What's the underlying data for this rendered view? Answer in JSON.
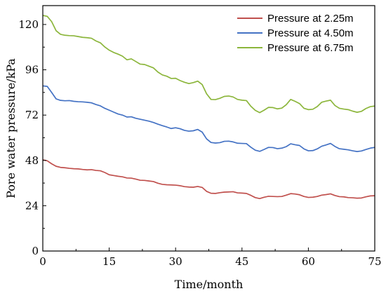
{
  "chart_data": {
    "type": "line",
    "title": "",
    "xlabel": "Time/month",
    "ylabel": "Pore water pressure/kPa",
    "xlim": [
      0,
      75
    ],
    "ylim": [
      0,
      130
    ],
    "xticks": [
      0,
      15,
      30,
      45,
      60,
      75
    ],
    "yticks": [
      0,
      24,
      48,
      72,
      96,
      120
    ],
    "xtick_labels": [
      "0",
      "15",
      "30",
      "45",
      "60",
      "75"
    ],
    "ytick_labels": [
      "0",
      "24",
      "48",
      "72",
      "96",
      "120"
    ],
    "grid": false,
    "legend_position": "top-right",
    "x": [
      0,
      1,
      2,
      3,
      4,
      5,
      6,
      7,
      8,
      9,
      10,
      11,
      12,
      13,
      14,
      15,
      16,
      17,
      18,
      19,
      20,
      21,
      22,
      23,
      24,
      25,
      26,
      27,
      28,
      29,
      30,
      31,
      32,
      33,
      34,
      35,
      36,
      37,
      38,
      39,
      40,
      41,
      42,
      43,
      44,
      45,
      46,
      47,
      48,
      49,
      50,
      51,
      52,
      53,
      54,
      55,
      56,
      57,
      58,
      59,
      60,
      61,
      62,
      63,
      64,
      65,
      66,
      67,
      68,
      69,
      70,
      71,
      72,
      73,
      74,
      75
    ],
    "series": [
      {
        "name": "Pressure at 2.25m",
        "color": "#c0504d",
        "values": [
          48.3,
          47.8,
          46.2,
          44.9,
          44.3,
          44.1,
          43.8,
          43.6,
          43.5,
          43.2,
          43.0,
          43.1,
          42.7,
          42.5,
          41.6,
          40.4,
          40.0,
          39.6,
          39.3,
          38.7,
          38.6,
          38.1,
          37.5,
          37.4,
          37.1,
          36.8,
          35.9,
          35.3,
          35.1,
          35.0,
          34.9,
          34.6,
          34.1,
          33.9,
          33.8,
          34.2,
          33.7,
          31.6,
          30.6,
          30.5,
          30.9,
          31.2,
          31.3,
          31.4,
          30.8,
          30.7,
          30.5,
          29.5,
          28.3,
          27.8,
          28.5,
          29.0,
          28.9,
          28.8,
          28.9,
          29.6,
          30.4,
          30.2,
          29.8,
          28.9,
          28.4,
          28.5,
          28.9,
          29.6,
          29.9,
          30.3,
          29.4,
          28.8,
          28.7,
          28.3,
          28.2,
          28.0,
          28.1,
          28.7,
          29.2,
          29.3
        ]
      },
      {
        "name": "Pressure at 4.50m",
        "color": "#4472c4",
        "values": [
          87.5,
          87.2,
          84.0,
          80.6,
          79.8,
          79.6,
          79.7,
          79.3,
          79.1,
          79.0,
          78.8,
          78.5,
          77.6,
          76.9,
          75.6,
          74.6,
          73.6,
          72.6,
          72.0,
          71.0,
          71.1,
          70.3,
          69.8,
          69.3,
          68.8,
          68.1,
          67.2,
          66.4,
          65.7,
          64.9,
          65.3,
          64.8,
          63.9,
          63.5,
          63.7,
          64.4,
          63.0,
          59.4,
          57.5,
          57.2,
          57.4,
          58.1,
          58.2,
          57.8,
          57.1,
          57.0,
          56.9,
          55.0,
          53.4,
          52.8,
          53.8,
          54.9,
          54.8,
          54.2,
          54.5,
          55.3,
          56.8,
          56.3,
          55.9,
          54.1,
          53.1,
          53.2,
          54.1,
          55.5,
          56.2,
          57.0,
          55.4,
          54.2,
          53.9,
          53.6,
          53.1,
          52.7,
          53.0,
          53.8,
          54.5,
          54.9
        ]
      },
      {
        "name": "Pressure at 6.75m",
        "color": "#8cb63c",
        "values": [
          124.8,
          124.3,
          121.5,
          116.7,
          114.8,
          114.3,
          114.1,
          114.0,
          113.6,
          113.2,
          113.0,
          112.7,
          111.3,
          110.3,
          108.1,
          106.4,
          105.2,
          104.3,
          103.2,
          101.3,
          101.8,
          100.4,
          99.0,
          98.8,
          97.9,
          97.0,
          94.8,
          93.3,
          92.6,
          91.4,
          91.5,
          90.3,
          89.4,
          88.7,
          89.2,
          90.0,
          88.2,
          83.3,
          80.3,
          80.2,
          80.9,
          81.9,
          82.1,
          81.6,
          80.3,
          79.9,
          79.7,
          76.7,
          74.5,
          73.3,
          74.6,
          76.1,
          76.0,
          75.3,
          75.7,
          77.5,
          80.3,
          79.3,
          78.1,
          75.6,
          74.9,
          75.1,
          76.5,
          78.8,
          79.4,
          79.9,
          77.1,
          75.6,
          75.2,
          74.9,
          74.1,
          73.5,
          74.0,
          75.5,
          76.5,
          76.8
        ]
      }
    ]
  }
}
